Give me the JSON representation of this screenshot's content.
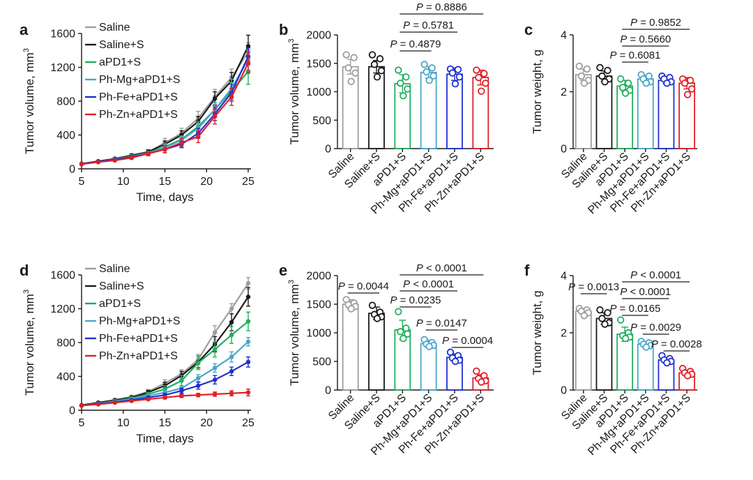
{
  "colors": {
    "Saline": "#9e9e9e",
    "Saline+S": "#1a1a1a",
    "aPD1+S": "#1fae5e",
    "Ph-Mg+aPD1+S": "#4aa7c8",
    "Ph-Fe+aPD1+S": "#1f2fd1",
    "Ph-Zn+aPD1+S": "#e01f26",
    "axis": "#1a1a1a"
  },
  "groups": [
    "Saline",
    "Saline+S",
    "aPD1+S",
    "Ph-Mg+aPD1+S",
    "Ph-Fe+aPD1+S",
    "Ph-Zn+aPD1+S"
  ],
  "chart_data": [
    {
      "panel": "a",
      "type": "line",
      "xlabel": "Time, days",
      "ylabel": "Tumor volume, mm",
      "ylabel_sup": "3",
      "xlim": [
        5,
        25
      ],
      "ylim": [
        0,
        1600
      ],
      "xticks": [
        5,
        10,
        15,
        20,
        25
      ],
      "yticks": [
        0,
        400,
        800,
        1200,
        1600
      ],
      "x": [
        5,
        7,
        9,
        11,
        13,
        15,
        17,
        19,
        21,
        23,
        25
      ],
      "series": [
        {
          "name": "Saline",
          "values": [
            60,
            80,
            110,
            150,
            200,
            310,
            420,
            600,
            850,
            1080,
            1380
          ],
          "err": [
            5,
            10,
            12,
            15,
            25,
            50,
            60,
            80,
            90,
            100,
            110
          ]
        },
        {
          "name": "Saline+S",
          "values": [
            60,
            90,
            120,
            160,
            200,
            290,
            400,
            560,
            830,
            1040,
            1450
          ],
          "err": [
            5,
            10,
            12,
            15,
            25,
            40,
            50,
            60,
            80,
            100,
            130
          ]
        },
        {
          "name": "aPD1+S",
          "values": [
            55,
            85,
            115,
            150,
            190,
            260,
            350,
            500,
            700,
            920,
            1150
          ],
          "err": [
            5,
            10,
            12,
            15,
            20,
            40,
            40,
            60,
            80,
            100,
            150
          ]
        },
        {
          "name": "Ph-Mg+aPD1+S",
          "values": [
            55,
            85,
            110,
            145,
            185,
            250,
            340,
            480,
            700,
            950,
            1290
          ],
          "err": [
            5,
            10,
            12,
            15,
            20,
            40,
            40,
            60,
            80,
            110,
            120
          ]
        },
        {
          "name": "Ph-Fe+aPD1+S",
          "values": [
            55,
            85,
            110,
            140,
            180,
            230,
            290,
            420,
            650,
            900,
            1330
          ],
          "err": [
            5,
            10,
            10,
            15,
            20,
            40,
            40,
            60,
            80,
            100,
            100
          ]
        },
        {
          "name": "Ph-Zn+aPD1+S",
          "values": [
            55,
            80,
            100,
            130,
            180,
            230,
            310,
            380,
            620,
            850,
            1250
          ],
          "err": [
            5,
            10,
            10,
            15,
            25,
            40,
            50,
            70,
            90,
            100,
            120
          ]
        }
      ]
    },
    {
      "panel": "b",
      "type": "bar",
      "ylabel": "Tumor volume, mm",
      "ylabel_sup": "3",
      "ylim": [
        0,
        2000
      ],
      "yticks": [
        0,
        500,
        1000,
        1500,
        2000
      ],
      "categories": [
        "Saline",
        "Saline+S",
        "aPD1+S",
        "Ph-Mg+aPD1+S",
        "Ph-Fe+aPD1+S",
        "Ph-Zn+aPD1+S"
      ],
      "values": [
        1440,
        1440,
        1140,
        1340,
        1310,
        1250
      ],
      "err": [
        130,
        110,
        160,
        100,
        110,
        130
      ],
      "points": [
        [
          1650,
          1600,
          1420,
          1330,
          1180
        ],
        [
          1650,
          1580,
          1480,
          1370,
          1260
        ],
        [
          1380,
          1260,
          1150,
          1050,
          930
        ],
        [
          1480,
          1420,
          1350,
          1280,
          1200
        ],
        [
          1400,
          1390,
          1330,
          1260,
          1140
        ],
        [
          1380,
          1320,
          1250,
          1150,
          1010
        ]
      ],
      "comparisons": [
        {
          "from": 2,
          "to": 3,
          "label": "= 0.4879"
        },
        {
          "from": 2,
          "to": 4,
          "label": "= 0.5781"
        },
        {
          "from": 2,
          "to": 5,
          "label": "= 0.8886"
        }
      ]
    },
    {
      "panel": "c",
      "type": "bar",
      "ylabel": "Tumor weight, g",
      "ylabel_sup": "",
      "ylim": [
        0,
        4
      ],
      "yticks": [
        0,
        2,
        4
      ],
      "categories": [
        "Saline",
        "Saline+S",
        "aPD1+S",
        "Ph-Mg+aPD1+S",
        "Ph-Fe+aPD1+S",
        "Ph-Zn+aPD1+S"
      ],
      "values": [
        2.6,
        2.55,
        2.2,
        2.45,
        2.4,
        2.3
      ],
      "err": [
        0.2,
        0.18,
        0.2,
        0.12,
        0.12,
        0.2
      ],
      "points": [
        [
          2.9,
          2.8,
          2.55,
          2.4,
          2.3
        ],
        [
          2.85,
          2.75,
          2.55,
          2.45,
          2.35
        ],
        [
          2.45,
          2.3,
          2.15,
          2.05,
          1.95
        ],
        [
          2.6,
          2.55,
          2.45,
          2.35,
          2.3
        ],
        [
          2.55,
          2.5,
          2.45,
          2.35,
          2.3
        ],
        [
          2.45,
          2.4,
          2.3,
          2.1,
          1.9
        ]
      ],
      "comparisons": [
        {
          "from": 2,
          "to": 3,
          "label": "= 0.6081"
        },
        {
          "from": 2,
          "to": 4,
          "label": "= 0.5660"
        },
        {
          "from": 2,
          "to": 5,
          "label": "= 0.9852"
        }
      ]
    },
    {
      "panel": "d",
      "type": "line",
      "xlabel": "Time, days",
      "ylabel": "Tumor volume, mm",
      "ylabel_sup": "3",
      "xlim": [
        5,
        25
      ],
      "ylim": [
        0,
        1600
      ],
      "xticks": [
        5,
        10,
        15,
        20,
        25
      ],
      "yticks": [
        0,
        400,
        800,
        1200,
        1600
      ],
      "x": [
        5,
        7,
        9,
        11,
        13,
        15,
        17,
        19,
        21,
        23,
        25
      ],
      "series": [
        {
          "name": "Saline",
          "values": [
            60,
            90,
            120,
            160,
            220,
            320,
            430,
            600,
            920,
            1200,
            1500
          ],
          "err": [
            5,
            10,
            12,
            15,
            25,
            40,
            50,
            60,
            80,
            60,
            70
          ]
        },
        {
          "name": "Saline+S",
          "values": [
            60,
            90,
            120,
            150,
            210,
            290,
            410,
            570,
            780,
            1040,
            1340
          ],
          "err": [
            5,
            10,
            12,
            15,
            25,
            40,
            50,
            70,
            90,
            100,
            110
          ]
        },
        {
          "name": "aPD1+S",
          "values": [
            55,
            80,
            110,
            140,
            190,
            250,
            350,
            560,
            720,
            890,
            1050
          ],
          "err": [
            5,
            10,
            12,
            15,
            20,
            40,
            60,
            80,
            90,
            100,
            110
          ]
        },
        {
          "name": "Ph-Mg+aPD1+S",
          "values": [
            55,
            80,
            100,
            130,
            170,
            210,
            260,
            380,
            500,
            630,
            810
          ],
          "err": [
            5,
            8,
            10,
            12,
            15,
            25,
            30,
            40,
            50,
            60,
            50
          ]
        },
        {
          "name": "Ph-Fe+aPD1+S",
          "values": [
            55,
            75,
            95,
            120,
            150,
            180,
            230,
            290,
            360,
            460,
            570
          ],
          "err": [
            5,
            8,
            10,
            10,
            15,
            20,
            30,
            40,
            50,
            50,
            60
          ]
        },
        {
          "name": "Ph-Zn+aPD1+S",
          "values": [
            55,
            70,
            90,
            110,
            130,
            150,
            170,
            180,
            190,
            200,
            210
          ],
          "err": [
            5,
            8,
            8,
            10,
            12,
            15,
            20,
            20,
            25,
            30,
            40
          ]
        }
      ]
    },
    {
      "panel": "e",
      "type": "bar",
      "ylabel": "Tumor volume, mm",
      "ylabel_sup": "3",
      "ylim": [
        0,
        2000
      ],
      "yticks": [
        0,
        500,
        1000,
        1500,
        2000
      ],
      "categories": [
        "Saline",
        "Saline+S",
        "aPD1+S",
        "Ph-Mg+aPD1+S",
        "Ph-Fe+aPD1+S",
        "Ph-Zn+aPD1+S"
      ],
      "values": [
        1500,
        1340,
        1050,
        810,
        570,
        210
      ],
      "err": [
        80,
        110,
        170,
        60,
        60,
        60
      ],
      "points": [
        [
          1580,
          1520,
          1490,
          1460,
          1420
        ],
        [
          1480,
          1360,
          1320,
          1280,
          1250
        ],
        [
          1370,
          1080,
          1020,
          980,
          900
        ],
        [
          880,
          830,
          800,
          780,
          760
        ],
        [
          660,
          600,
          560,
          520,
          500
        ],
        [
          330,
          250,
          200,
          160,
          140
        ]
      ],
      "comparisons": [
        {
          "from": 0,
          "to": 1,
          "label": "= 0.0044"
        },
        {
          "from": 2,
          "to": 3,
          "label": "= 0.0235"
        },
        {
          "from": 2,
          "to": 4,
          "label": "< 0.0001"
        },
        {
          "from": 2,
          "to": 5,
          "label": "< 0.0001"
        },
        {
          "from": 3,
          "to": 4,
          "label": "= 0.0147"
        },
        {
          "from": 4,
          "to": 5,
          "label": "= 0.0004"
        }
      ]
    },
    {
      "panel": "f",
      "type": "bar",
      "ylabel": "Tumor weight, g",
      "ylabel_sup": "",
      "ylim": [
        0,
        4
      ],
      "yticks": [
        0,
        2,
        4
      ],
      "categories": [
        "Saline",
        "Saline+S",
        "aPD1+S",
        "Ph-Mg+aPD1+S",
        "Ph-Fe+aPD1+S",
        "Ph-Zn+aPD1+S"
      ],
      "values": [
        2.75,
        2.5,
        1.95,
        1.6,
        1.05,
        0.6
      ],
      "err": [
        0.1,
        0.2,
        0.25,
        0.08,
        0.08,
        0.1
      ],
      "points": [
        [
          2.85,
          2.8,
          2.75,
          2.7,
          2.6
        ],
        [
          2.8,
          2.7,
          2.5,
          2.35,
          2.3
        ],
        [
          2.45,
          2.0,
          1.9,
          1.85,
          1.8
        ],
        [
          1.7,
          1.65,
          1.6,
          1.55,
          1.5
        ],
        [
          1.2,
          1.1,
          1.05,
          1.0,
          0.95
        ],
        [
          0.75,
          0.65,
          0.6,
          0.55,
          0.5
        ]
      ],
      "comparisons": [
        {
          "from": 0,
          "to": 1,
          "label": "= 0.0013"
        },
        {
          "from": 2,
          "to": 3,
          "label": "= 0.0165"
        },
        {
          "from": 2,
          "to": 4,
          "label": "< 0.0001"
        },
        {
          "from": 2,
          "to": 5,
          "label": "< 0.0001"
        },
        {
          "from": 3,
          "to": 4,
          "label": "= 0.0029"
        },
        {
          "from": 4,
          "to": 5,
          "label": "= 0.0028"
        }
      ]
    }
  ]
}
